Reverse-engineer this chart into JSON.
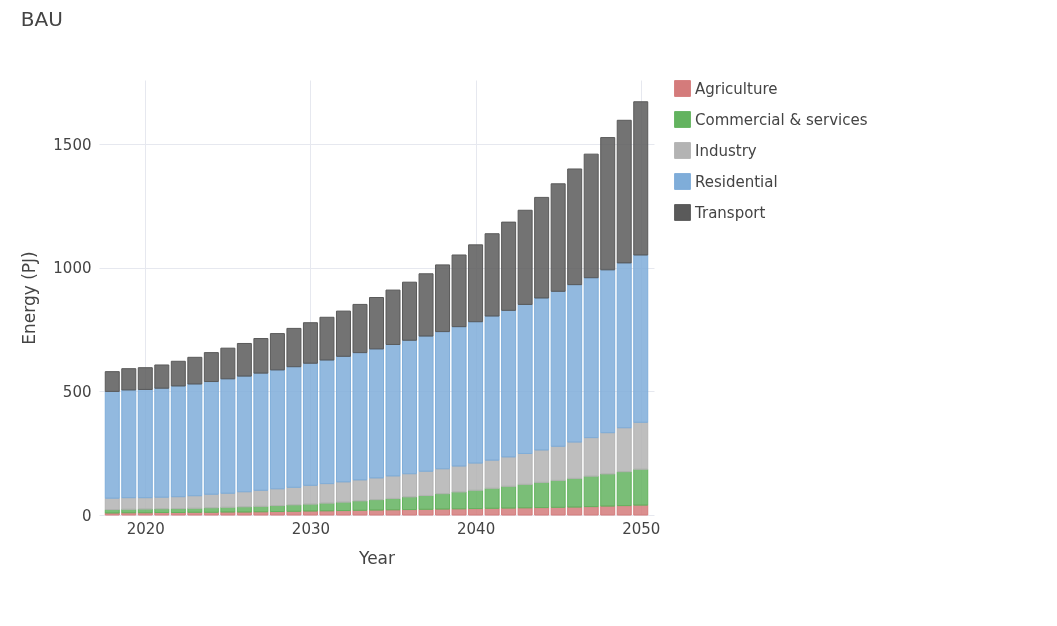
{
  "chart_data": {
    "type": "bar",
    "title": "BAU",
    "xlabel": "Year",
    "ylabel": "Energy (PJ)",
    "stacked": true,
    "grid": true,
    "legend": "top right",
    "x": [
      2018,
      2019,
      2020,
      2021,
      2022,
      2023,
      2024,
      2025,
      2026,
      2027,
      2028,
      2029,
      2030,
      2031,
      2032,
      2033,
      2034,
      2035,
      2036,
      2037,
      2038,
      2039,
      2040,
      2041,
      2042,
      2043,
      2044,
      2045,
      2046,
      2047,
      2048,
      2049,
      2050
    ],
    "xlim": [
      2017.5,
      2050.5
    ],
    "xticks": [
      2020,
      2030,
      2040,
      2050
    ],
    "ylim": [
      0,
      1760
    ],
    "yticks": [
      0,
      500,
      1000,
      1500
    ],
    "series": [
      {
        "name": "Agriculture",
        "color": "#d47b7b",
        "values": [
          8,
          9,
          9,
          10,
          10,
          11,
          11,
          12,
          12,
          13,
          14,
          15,
          16,
          17,
          18,
          19,
          20,
          21,
          22,
          23,
          24,
          25,
          26,
          27,
          28,
          29,
          30,
          31,
          32,
          34,
          36,
          38,
          40
        ]
      },
      {
        "name": "Commercial & services",
        "color": "#63b35f",
        "values": [
          14,
          14,
          15,
          15,
          16,
          16,
          18,
          19,
          21,
          22,
          24,
          26,
          28,
          31,
          34,
          38,
          42,
          46,
          51,
          56,
          62,
          68,
          74,
          81,
          88,
          95,
          102,
          109,
          116,
          123,
          130,
          137,
          145
        ]
      },
      {
        "name": "Industry",
        "color": "#b3b3b3",
        "values": [
          46,
          47,
          46,
          47,
          48,
          51,
          55,
          57,
          61,
          65,
          68,
          71,
          76,
          79,
          82,
          85,
          88,
          91,
          94,
          98,
          101,
          105,
          110,
          114,
          119,
          125,
          131,
          138,
          147,
          156,
          167,
          178,
          190
        ]
      },
      {
        "name": "Residential",
        "color": "#7fadd9",
        "values": [
          432,
          436,
          438,
          441,
          448,
          452,
          456,
          463,
          468,
          474,
          481,
          488,
          494,
          500,
          508,
          515,
          522,
          532,
          540,
          547,
          555,
          564,
          572,
          583,
          593,
          603,
          615,
          627,
          637,
          647,
          659,
          667,
          677
        ]
      },
      {
        "name": "Transport",
        "color": "#5a5a5a",
        "values": [
          80,
          86,
          88,
          94,
          100,
          108,
          117,
          124,
          132,
          140,
          147,
          155,
          164,
          173,
          183,
          195,
          208,
          220,
          235,
          252,
          270,
          290,
          311,
          333,
          357,
          381,
          407,
          435,
          468,
          500,
          535,
          577,
          620
        ]
      }
    ]
  }
}
